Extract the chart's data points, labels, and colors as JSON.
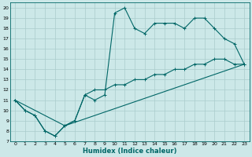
{
  "xlabel": "Humidex (Indice chaleur)",
  "bg_color": "#cce8e8",
  "grid_color": "#aacccc",
  "line_color": "#006666",
  "xlim": [
    -0.5,
    23.5
  ],
  "ylim": [
    7,
    20.5
  ],
  "xticks": [
    0,
    1,
    2,
    3,
    4,
    5,
    6,
    7,
    8,
    9,
    10,
    11,
    12,
    13,
    14,
    15,
    16,
    17,
    18,
    19,
    20,
    21,
    22,
    23
  ],
  "yticks": [
    7,
    8,
    9,
    10,
    11,
    12,
    13,
    14,
    15,
    16,
    17,
    18,
    19,
    20
  ],
  "line1_x": [
    0,
    1,
    2,
    3,
    4,
    5,
    6,
    7,
    8,
    9,
    10,
    11,
    12,
    13,
    14,
    15,
    16,
    17,
    18,
    19,
    20,
    21,
    22,
    23
  ],
  "line1_y": [
    11,
    10,
    9.5,
    8,
    7.5,
    8.5,
    9.0,
    11.5,
    11.0,
    11.5,
    19.5,
    20,
    18.0,
    17.5,
    18.5,
    18.5,
    18.5,
    18.0,
    19.0,
    19.0,
    18.0,
    17.0,
    16.5,
    14.5
  ],
  "line2_x": [
    0,
    5,
    23
  ],
  "line2_y": [
    11,
    8.5,
    14.5
  ],
  "line3_x": [
    0,
    1,
    2,
    3,
    4,
    5,
    6,
    7,
    8,
    9,
    10,
    11,
    12,
    13,
    14,
    15,
    16,
    17,
    18,
    19,
    20,
    21,
    22,
    23
  ],
  "line3_y": [
    11,
    10,
    9.5,
    8,
    7.5,
    8.5,
    9.0,
    11.5,
    12.0,
    12.0,
    12.5,
    12.5,
    13.0,
    13.0,
    13.5,
    13.5,
    14.0,
    14.0,
    14.5,
    14.5,
    15.0,
    15.0,
    14.5,
    14.5
  ]
}
